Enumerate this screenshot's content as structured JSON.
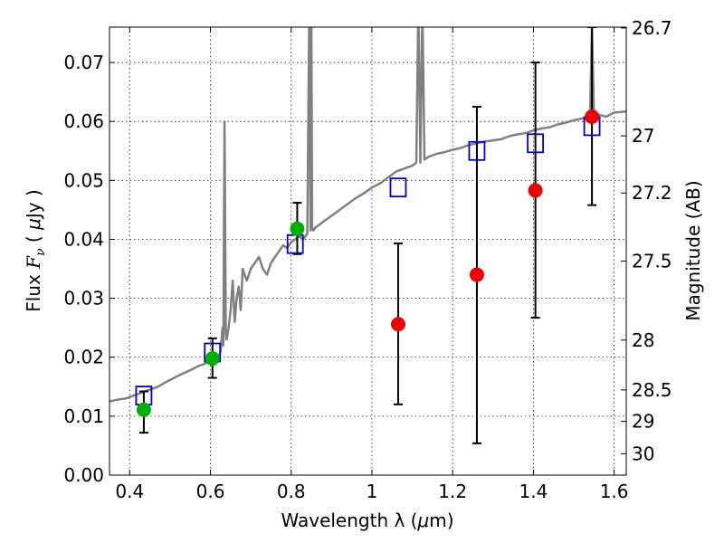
{
  "chart_data": {
    "type": "scatter",
    "title": "",
    "xlabel_prefix": "Wavelength  λ (",
    "xlabel_mu": "μ",
    "xlabel_suffix": "m)",
    "ylabel_prefix": "Flux  ",
    "ylabel_var": "F",
    "ylabel_sub": "ν",
    "ylabel_mid": "  (  ",
    "ylabel_mu": "μ",
    "ylabel_unit": "Jy  )",
    "y2label": "Magnitude (AB)",
    "xlim": [
      0.35,
      1.63
    ],
    "ylim": [
      0.0,
      0.076
    ],
    "grid": true,
    "x_ticks": [
      0.4,
      0.6,
      0.8,
      1.0,
      1.2,
      1.4,
      1.6
    ],
    "x_tick_labels": [
      "0.4",
      "0.6",
      "0.8",
      "1",
      "1.2",
      "1.4",
      "1.6"
    ],
    "y_ticks": [
      0.0,
      0.01,
      0.02,
      0.03,
      0.04,
      0.05,
      0.06,
      0.07
    ],
    "y_tick_labels": [
      "0.00",
      "0.01",
      "0.02",
      "0.03",
      "0.04",
      "0.05",
      "0.06",
      "0.07"
    ],
    "y2_ticks": [
      26.7,
      27,
      27.2,
      27.5,
      28,
      28.5,
      29,
      30
    ],
    "y2_tick_labels": [
      "26.7",
      "27",
      "27.2",
      "27.5",
      "28",
      "28.5",
      "29",
      "30"
    ],
    "colors": {
      "spectrum": "#808080",
      "model_boxes": "#0000cc",
      "green_points": "#00b000",
      "red_points": "#ee0000",
      "error_bars": "#000000"
    },
    "series": [
      {
        "kind": "spectrum-line",
        "x": [
          0.35,
          0.37,
          0.39,
          0.41,
          0.43,
          0.45,
          0.47,
          0.49,
          0.51,
          0.53,
          0.55,
          0.57,
          0.59,
          0.61,
          0.62,
          0.625,
          0.63,
          0.632,
          0.635,
          0.638,
          0.64,
          0.645,
          0.65,
          0.655,
          0.66,
          0.665,
          0.67,
          0.675,
          0.68,
          0.685,
          0.69,
          0.7,
          0.71,
          0.72,
          0.73,
          0.74,
          0.75,
          0.76,
          0.77,
          0.78,
          0.79,
          0.8,
          0.81,
          0.82,
          0.83,
          0.84,
          0.845,
          0.848,
          0.85,
          0.852,
          0.855,
          0.86,
          0.87,
          0.88,
          0.9,
          0.92,
          0.94,
          0.96,
          0.98,
          1.0,
          1.02,
          1.04,
          1.06,
          1.08,
          1.1,
          1.11,
          1.115,
          1.12,
          1.125,
          1.13,
          1.14,
          1.16,
          1.18,
          1.2,
          1.22,
          1.24,
          1.26,
          1.28,
          1.3,
          1.32,
          1.34,
          1.36,
          1.38,
          1.4,
          1.42,
          1.44,
          1.46,
          1.48,
          1.5,
          1.52,
          1.54,
          1.545,
          1.55,
          1.56,
          1.58,
          1.6,
          1.63
        ],
        "y": [
          0.0125,
          0.0128,
          0.013,
          0.0135,
          0.014,
          0.0145,
          0.015,
          0.0158,
          0.0165,
          0.0172,
          0.0178,
          0.0185,
          0.019,
          0.0195,
          0.02,
          0.021,
          0.025,
          0.022,
          0.06,
          0.024,
          0.023,
          0.025,
          0.028,
          0.033,
          0.026,
          0.03,
          0.032,
          0.028,
          0.035,
          0.034,
          0.033,
          0.035,
          0.036,
          0.037,
          0.035,
          0.034,
          0.036,
          0.037,
          0.038,
          0.039,
          0.0385,
          0.0395,
          0.04,
          0.0405,
          0.04,
          0.041,
          0.08,
          0.0415,
          0.08,
          0.042,
          0.0415,
          0.042,
          0.0425,
          0.043,
          0.044,
          0.045,
          0.046,
          0.047,
          0.0478,
          0.0488,
          0.0495,
          0.0505,
          0.0515,
          0.052,
          0.0525,
          0.053,
          0.08,
          0.053,
          0.08,
          0.0535,
          0.054,
          0.0545,
          0.0548,
          0.0552,
          0.0555,
          0.056,
          0.0563,
          0.0566,
          0.0568,
          0.057,
          0.0575,
          0.0578,
          0.058,
          0.0585,
          0.0588,
          0.059,
          0.0595,
          0.0598,
          0.0602,
          0.0605,
          0.0608,
          0.076,
          0.061,
          0.0612,
          0.0608,
          0.0615,
          0.0617
        ]
      },
      {
        "kind": "model-boxes",
        "x": [
          0.435,
          0.605,
          0.81,
          1.065,
          1.26,
          1.405,
          1.545
        ],
        "y": [
          0.0135,
          0.0208,
          0.0392,
          0.0488,
          0.055,
          0.0563,
          0.0592
        ]
      },
      {
        "kind": "green-points",
        "x": [
          0.435,
          0.605,
          0.815
        ],
        "y": [
          0.0111,
          0.0198,
          0.0418
        ],
        "yerr_low": [
          0.0072,
          0.0165,
          0.0375
        ],
        "yerr_high": [
          0.0142,
          0.0232,
          0.0462
        ]
      },
      {
        "kind": "red-points",
        "x": [
          1.065,
          1.26,
          1.405,
          1.545
        ],
        "y": [
          0.0256,
          0.034,
          0.0483,
          0.0608
        ],
        "yerr_low": [
          0.012,
          0.0054,
          0.0267,
          0.0458
        ],
        "yerr_high": [
          0.0393,
          0.0625,
          0.07,
          0.076
        ]
      }
    ]
  }
}
